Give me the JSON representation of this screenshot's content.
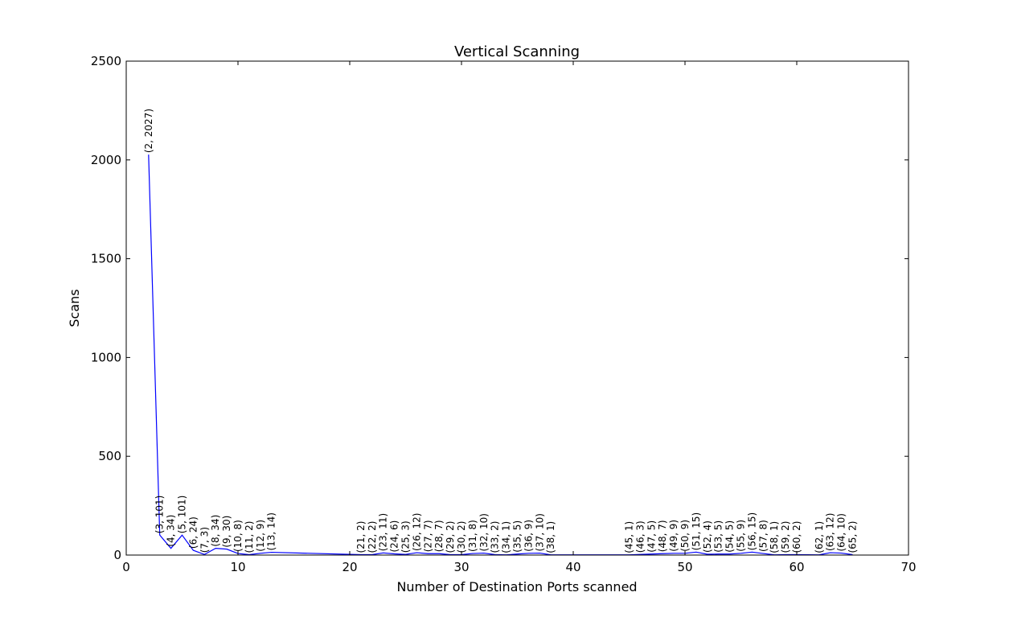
{
  "chart_data": {
    "type": "line",
    "title": "Vertical Scanning",
    "xlabel": "Number of Destination Ports scanned",
    "ylabel": "Scans",
    "xlim": [
      0,
      70
    ],
    "ylim": [
      0,
      2500
    ],
    "xticks": [
      0,
      10,
      20,
      30,
      40,
      50,
      60,
      70
    ],
    "yticks": [
      0,
      500,
      1000,
      1500,
      2000,
      2500
    ],
    "grid": false,
    "line_color": "#0000ff",
    "x": [
      2,
      3,
      4,
      5,
      6,
      7,
      8,
      9,
      10,
      11,
      12,
      13,
      21,
      22,
      23,
      24,
      25,
      26,
      27,
      28,
      29,
      30,
      31,
      32,
      33,
      34,
      35,
      36,
      37,
      38,
      45,
      46,
      47,
      48,
      49,
      50,
      51,
      52,
      53,
      54,
      55,
      56,
      57,
      58,
      59,
      60,
      62,
      63,
      64,
      65
    ],
    "y": [
      2027,
      101,
      34,
      101,
      24,
      3,
      34,
      30,
      8,
      2,
      9,
      14,
      2,
      2,
      11,
      6,
      3,
      12,
      7,
      7,
      2,
      2,
      8,
      10,
      2,
      1,
      5,
      9,
      10,
      1,
      1,
      3,
      5,
      7,
      9,
      9,
      15,
      4,
      5,
      5,
      9,
      15,
      8,
      1,
      2,
      2,
      1,
      12,
      10,
      2
    ],
    "point_labels": [
      "(2, 2027)",
      "(3, 101)",
      "(4, 34)",
      "(5, 101)",
      "(6, 24)",
      "(7, 3)",
      "(8, 34)",
      "(9, 30)",
      "(10, 8)",
      "(11, 2)",
      "(12, 9)",
      "(13, 14)",
      "(21, 2)",
      "(22, 2)",
      "(23, 11)",
      "(24, 6)",
      "(25, 3)",
      "(26, 12)",
      "(27, 7)",
      "(28, 7)",
      "(29, 2)",
      "(30, 2)",
      "(31, 8)",
      "(32, 10)",
      "(33, 2)",
      "(34, 1)",
      "(35, 5)",
      "(36, 9)",
      "(37, 10)",
      "(38, 1)",
      "(45, 1)",
      "(46, 3)",
      "(47, 5)",
      "(48, 7)",
      "(49, 9)",
      "(50, 9)",
      "(51, 15)",
      "(52, 4)",
      "(53, 5)",
      "(54, 5)",
      "(55, 9)",
      "(56, 15)",
      "(57, 8)",
      "(58, 1)",
      "(59, 2)",
      "(60, 2)",
      "(62, 1)",
      "(63, 12)",
      "(64, 10)",
      "(65, 2)"
    ]
  }
}
